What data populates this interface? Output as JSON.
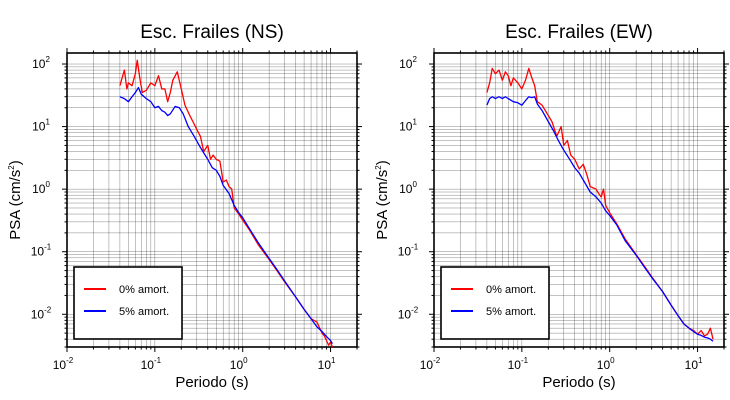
{
  "chart_data": [
    {
      "type": "line",
      "title": "Esc. Frailes (NS)",
      "xlabel": "Periodo (s)",
      "ylabel_main": "PSA (cm/s",
      "ylabel_sup": "2",
      "ylabel_tail": ")",
      "xscale": "log",
      "yscale": "log",
      "xlim": [
        0.01,
        20
      ],
      "ylim": [
        0.003,
        150
      ],
      "grid": true,
      "legend_position": "bottom-left",
      "x_ticks": [
        {
          "base": "10",
          "exp": "-2",
          "value": 0.01
        },
        {
          "base": "10",
          "exp": "-1",
          "value": 0.1
        },
        {
          "base": "10",
          "exp": "0",
          "value": 1
        },
        {
          "base": "10",
          "exp": "1",
          "value": 10
        }
      ],
      "y_ticks": [
        {
          "base": "10",
          "exp": "-2",
          "value": 0.01
        },
        {
          "base": "10",
          "exp": "-1",
          "value": 0.1
        },
        {
          "base": "10",
          "exp": "0",
          "value": 1
        },
        {
          "base": "10",
          "exp": "1",
          "value": 10
        },
        {
          "base": "10",
          "exp": "2",
          "value": 100
        }
      ],
      "series": [
        {
          "name": "0% amort.",
          "color": "#ff0000",
          "points": [
            [
              0.04,
              45
            ],
            [
              0.045,
              80
            ],
            [
              0.048,
              40
            ],
            [
              0.05,
              50
            ],
            [
              0.055,
              45
            ],
            [
              0.06,
              70
            ],
            [
              0.063,
              115
            ],
            [
              0.068,
              55
            ],
            [
              0.072,
              35
            ],
            [
              0.08,
              38
            ],
            [
              0.09,
              50
            ],
            [
              0.1,
              45
            ],
            [
              0.11,
              65
            ],
            [
              0.12,
              40
            ],
            [
              0.13,
              40
            ],
            [
              0.14,
              25
            ],
            [
              0.15,
              35
            ],
            [
              0.16,
              55
            ],
            [
              0.18,
              75
            ],
            [
              0.2,
              40
            ],
            [
              0.22,
              22
            ],
            [
              0.25,
              15
            ],
            [
              0.28,
              11
            ],
            [
              0.3,
              9
            ],
            [
              0.33,
              7
            ],
            [
              0.36,
              4
            ],
            [
              0.4,
              5
            ],
            [
              0.43,
              3
            ],
            [
              0.46,
              3.5
            ],
            [
              0.5,
              3
            ],
            [
              0.55,
              2.8
            ],
            [
              0.6,
              1.3
            ],
            [
              0.65,
              1.4
            ],
            [
              0.7,
              1.1
            ],
            [
              0.75,
              1
            ],
            [
              0.8,
              0.5
            ],
            [
              0.85,
              0.45
            ],
            [
              0.9,
              0.4
            ],
            [
              1,
              0.32
            ],
            [
              1.2,
              0.22
            ],
            [
              1.5,
              0.13
            ],
            [
              2,
              0.075
            ],
            [
              2.5,
              0.048
            ],
            [
              3,
              0.033
            ],
            [
              4,
              0.019
            ],
            [
              5,
              0.012
            ],
            [
              6,
              0.0085
            ],
            [
              7,
              0.0075
            ],
            [
              8,
              0.005
            ],
            [
              8.5,
              0.0045
            ],
            [
              9,
              0.0038
            ],
            [
              9.5,
              0.0032
            ],
            [
              10,
              0.0036
            ],
            [
              10.5,
              0.003
            ]
          ]
        },
        {
          "name": "5% amort.",
          "color": "#0000ff",
          "points": [
            [
              0.04,
              30
            ],
            [
              0.045,
              28
            ],
            [
              0.05,
              25
            ],
            [
              0.055,
              30
            ],
            [
              0.06,
              35
            ],
            [
              0.065,
              42
            ],
            [
              0.07,
              33
            ],
            [
              0.08,
              28
            ],
            [
              0.09,
              25
            ],
            [
              0.1,
              20
            ],
            [
              0.11,
              21
            ],
            [
              0.12,
              18
            ],
            [
              0.13,
              17
            ],
            [
              0.14,
              15
            ],
            [
              0.15,
              16
            ],
            [
              0.17,
              21
            ],
            [
              0.19,
              20
            ],
            [
              0.21,
              16
            ],
            [
              0.24,
              10
            ],
            [
              0.28,
              7
            ],
            [
              0.32,
              5
            ],
            [
              0.36,
              3.8
            ],
            [
              0.4,
              3
            ],
            [
              0.45,
              2.2
            ],
            [
              0.5,
              2
            ],
            [
              0.55,
              1.6
            ],
            [
              0.6,
              1.15
            ],
            [
              0.7,
              0.85
            ],
            [
              0.8,
              0.55
            ],
            [
              0.9,
              0.42
            ],
            [
              1,
              0.35
            ],
            [
              1.2,
              0.23
            ],
            [
              1.5,
              0.14
            ],
            [
              2,
              0.078
            ],
            [
              2.5,
              0.05
            ],
            [
              3,
              0.034
            ],
            [
              4,
              0.019
            ],
            [
              5,
              0.012
            ],
            [
              6,
              0.0085
            ],
            [
              7,
              0.0063
            ],
            [
              8,
              0.0053
            ],
            [
              9,
              0.0044
            ],
            [
              10,
              0.0038
            ],
            [
              10.5,
              0.0034
            ]
          ]
        }
      ]
    },
    {
      "type": "line",
      "title": "Esc. Frailes (EW)",
      "xlabel": "Periodo (s)",
      "ylabel_main": "PSA (cm/s",
      "ylabel_sup": "2",
      "ylabel_tail": ")",
      "xscale": "log",
      "yscale": "log",
      "xlim": [
        0.01,
        20
      ],
      "ylim": [
        0.003,
        150
      ],
      "grid": true,
      "legend_position": "bottom-left",
      "x_ticks": [
        {
          "base": "10",
          "exp": "-2",
          "value": 0.01
        },
        {
          "base": "10",
          "exp": "-1",
          "value": 0.1
        },
        {
          "base": "10",
          "exp": "0",
          "value": 1
        },
        {
          "base": "10",
          "exp": "1",
          "value": 10
        }
      ],
      "y_ticks": [
        {
          "base": "10",
          "exp": "-2",
          "value": 0.01
        },
        {
          "base": "10",
          "exp": "-1",
          "value": 0.1
        },
        {
          "base": "10",
          "exp": "0",
          "value": 1
        },
        {
          "base": "10",
          "exp": "1",
          "value": 10
        },
        {
          "base": "10",
          "exp": "2",
          "value": 100
        }
      ],
      "series": [
        {
          "name": "0% amort.",
          "color": "#ff0000",
          "points": [
            [
              0.04,
              35
            ],
            [
              0.043,
              50
            ],
            [
              0.046,
              85
            ],
            [
              0.05,
              70
            ],
            [
              0.055,
              80
            ],
            [
              0.06,
              55
            ],
            [
              0.065,
              75
            ],
            [
              0.07,
              65
            ],
            [
              0.075,
              45
            ],
            [
              0.08,
              60
            ],
            [
              0.09,
              50
            ],
            [
              0.1,
              40
            ],
            [
              0.11,
              55
            ],
            [
              0.12,
              85
            ],
            [
              0.13,
              60
            ],
            [
              0.14,
              45
            ],
            [
              0.15,
              25
            ],
            [
              0.17,
              22
            ],
            [
              0.2,
              15
            ],
            [
              0.22,
              12
            ],
            [
              0.25,
              7
            ],
            [
              0.28,
              10
            ],
            [
              0.3,
              5
            ],
            [
              0.33,
              6
            ],
            [
              0.36,
              3.5
            ],
            [
              0.4,
              3
            ],
            [
              0.45,
              2.1
            ],
            [
              0.5,
              2.5
            ],
            [
              0.55,
              1.7
            ],
            [
              0.6,
              1.1
            ],
            [
              0.7,
              1
            ],
            [
              0.75,
              0.85
            ],
            [
              0.8,
              0.75
            ],
            [
              0.85,
              1
            ],
            [
              0.9,
              0.55
            ],
            [
              1,
              0.42
            ],
            [
              1.2,
              0.28
            ],
            [
              1.5,
              0.16
            ],
            [
              2,
              0.09
            ],
            [
              2.5,
              0.058
            ],
            [
              3,
              0.04
            ],
            [
              4,
              0.023
            ],
            [
              5,
              0.014
            ],
            [
              6,
              0.0095
            ],
            [
              7,
              0.007
            ],
            [
              8,
              0.006
            ],
            [
              9,
              0.0055
            ],
            [
              10,
              0.0048
            ],
            [
              11,
              0.0055
            ],
            [
              12,
              0.0045
            ],
            [
              13,
              0.0048
            ],
            [
              14,
              0.006
            ],
            [
              15,
              0.004
            ]
          ]
        },
        {
          "name": "5% amort.",
          "color": "#0000ff",
          "points": [
            [
              0.04,
              22
            ],
            [
              0.043,
              28
            ],
            [
              0.046,
              30
            ],
            [
              0.05,
              28
            ],
            [
              0.055,
              30
            ],
            [
              0.06,
              28
            ],
            [
              0.065,
              30
            ],
            [
              0.07,
              28
            ],
            [
              0.08,
              25
            ],
            [
              0.09,
              24
            ],
            [
              0.1,
              22
            ],
            [
              0.11,
              26
            ],
            [
              0.12,
              30
            ],
            [
              0.13,
              29
            ],
            [
              0.14,
              30
            ],
            [
              0.15,
              23
            ],
            [
              0.17,
              18
            ],
            [
              0.2,
              12
            ],
            [
              0.23,
              8.5
            ],
            [
              0.26,
              6
            ],
            [
              0.3,
              4.2
            ],
            [
              0.35,
              3
            ],
            [
              0.4,
              2.2
            ],
            [
              0.45,
              1.8
            ],
            [
              0.5,
              1.4
            ],
            [
              0.6,
              0.9
            ],
            [
              0.7,
              0.75
            ],
            [
              0.8,
              0.6
            ],
            [
              0.9,
              0.45
            ],
            [
              1,
              0.38
            ],
            [
              1.2,
              0.27
            ],
            [
              1.5,
              0.15
            ],
            [
              2,
              0.088
            ],
            [
              2.5,
              0.056
            ],
            [
              3,
              0.039
            ],
            [
              4,
              0.023
            ],
            [
              5,
              0.014
            ],
            [
              6,
              0.0095
            ],
            [
              7,
              0.007
            ],
            [
              8,
              0.006
            ],
            [
              9,
              0.0053
            ],
            [
              10,
              0.0048
            ],
            [
              11,
              0.0046
            ],
            [
              12,
              0.0043
            ],
            [
              13,
              0.0042
            ],
            [
              14,
              0.004
            ],
            [
              15,
              0.0037
            ]
          ]
        }
      ]
    }
  ]
}
